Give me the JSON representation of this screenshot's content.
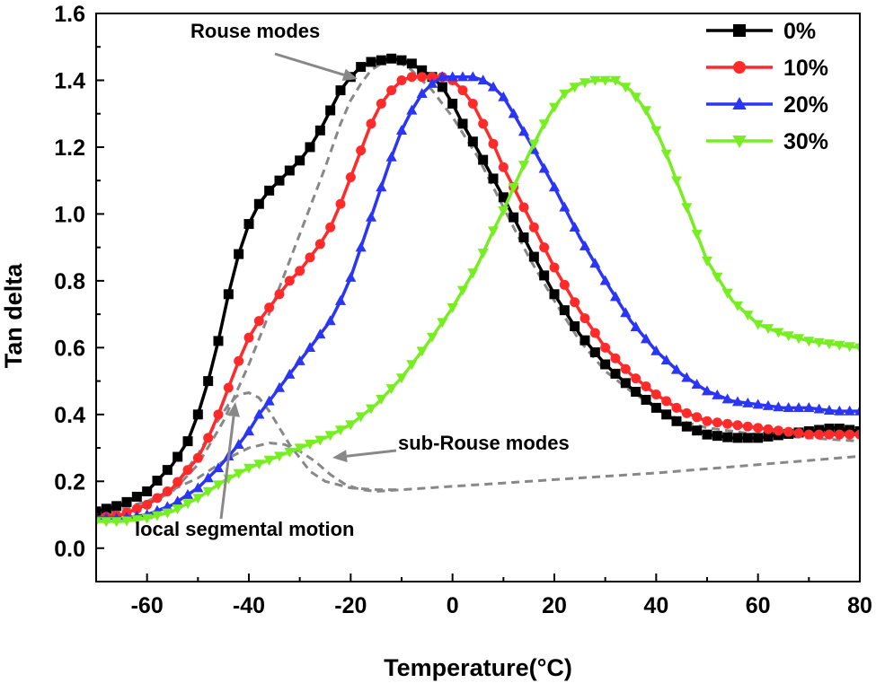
{
  "chart_data": {
    "type": "line",
    "title": "",
    "xlabel": "Temperature(°C)",
    "ylabel": "Tan delta",
    "xlim": [
      -70,
      80
    ],
    "ylim": [
      -0.1,
      1.6
    ],
    "xticks": [
      -60,
      -40,
      -20,
      0,
      20,
      40,
      60,
      80
    ],
    "yticks": [
      0.0,
      0.2,
      0.4,
      0.6,
      0.8,
      1.0,
      1.2,
      1.4,
      1.6
    ],
    "xtick_labels": [
      "-60",
      "-40",
      "-20",
      "0",
      "20",
      "40",
      "60",
      "80"
    ],
    "ytick_labels": [
      "0.0",
      "0.2",
      "0.4",
      "0.6",
      "0.8",
      "1.0",
      "1.2",
      "1.4",
      "1.6"
    ],
    "legend_position": "top-right",
    "series": [
      {
        "name": "0%",
        "color": "#000000",
        "marker": "square",
        "x": [
          -70,
          -65,
          -60,
          -55,
          -52,
          -50,
          -48,
          -46,
          -44,
          -42,
          -40,
          -38,
          -36,
          -34,
          -32,
          -30,
          -28,
          -26,
          -24,
          -22,
          -20,
          -18,
          -16,
          -14,
          -12,
          -10,
          -8,
          -6,
          -4,
          -2,
          0,
          2,
          5,
          10,
          15,
          20,
          25,
          30,
          35,
          40,
          45,
          50,
          55,
          60,
          65,
          70,
          75,
          80
        ],
        "y": [
          0.11,
          0.13,
          0.17,
          0.25,
          0.32,
          0.4,
          0.5,
          0.62,
          0.76,
          0.88,
          0.97,
          1.03,
          1.07,
          1.1,
          1.13,
          1.16,
          1.2,
          1.25,
          1.31,
          1.37,
          1.41,
          1.44,
          1.455,
          1.46,
          1.465,
          1.46,
          1.45,
          1.43,
          1.41,
          1.38,
          1.33,
          1.27,
          1.19,
          1.05,
          0.9,
          0.76,
          0.64,
          0.55,
          0.48,
          0.42,
          0.37,
          0.34,
          0.33,
          0.33,
          0.34,
          0.35,
          0.36,
          0.35
        ]
      },
      {
        "name": "10%",
        "color": "#ff2a2a",
        "marker": "circle",
        "x": [
          -70,
          -65,
          -60,
          -55,
          -50,
          -48,
          -46,
          -44,
          -42,
          -40,
          -38,
          -36,
          -34,
          -32,
          -30,
          -28,
          -26,
          -24,
          -22,
          -20,
          -18,
          -16,
          -14,
          -12,
          -10,
          -8,
          -6,
          -4,
          -2,
          0,
          2,
          4,
          6,
          8,
          10,
          15,
          20,
          25,
          30,
          35,
          40,
          45,
          50,
          55,
          60,
          65,
          70,
          75,
          80
        ],
        "y": [
          0.09,
          0.1,
          0.13,
          0.18,
          0.27,
          0.33,
          0.4,
          0.48,
          0.56,
          0.63,
          0.68,
          0.72,
          0.76,
          0.8,
          0.83,
          0.87,
          0.91,
          0.96,
          1.03,
          1.11,
          1.19,
          1.27,
          1.33,
          1.37,
          1.4,
          1.41,
          1.41,
          1.41,
          1.41,
          1.4,
          1.37,
          1.33,
          1.27,
          1.21,
          1.14,
          0.99,
          0.84,
          0.71,
          0.6,
          0.52,
          0.46,
          0.41,
          0.38,
          0.37,
          0.36,
          0.35,
          0.34,
          0.34,
          0.34
        ]
      },
      {
        "name": "20%",
        "color": "#2b35f5",
        "marker": "triangle-up",
        "x": [
          -70,
          -65,
          -60,
          -55,
          -50,
          -46,
          -42,
          -40,
          -38,
          -36,
          -34,
          -32,
          -30,
          -28,
          -26,
          -24,
          -22,
          -20,
          -18,
          -16,
          -14,
          -12,
          -10,
          -8,
          -6,
          -4,
          -2,
          0,
          2,
          4,
          6,
          8,
          10,
          12,
          15,
          20,
          25,
          30,
          35,
          40,
          45,
          50,
          55,
          60,
          65,
          70,
          75,
          80
        ],
        "y": [
          0.09,
          0.09,
          0.1,
          0.13,
          0.18,
          0.24,
          0.31,
          0.35,
          0.4,
          0.44,
          0.48,
          0.52,
          0.56,
          0.6,
          0.64,
          0.68,
          0.74,
          0.81,
          0.9,
          0.99,
          1.08,
          1.17,
          1.25,
          1.31,
          1.36,
          1.39,
          1.41,
          1.41,
          1.41,
          1.41,
          1.4,
          1.38,
          1.35,
          1.3,
          1.22,
          1.08,
          0.93,
          0.8,
          0.68,
          0.59,
          0.52,
          0.47,
          0.44,
          0.43,
          0.42,
          0.42,
          0.41,
          0.41
        ]
      },
      {
        "name": "30%",
        "color": "#77ee22",
        "marker": "triangle-down",
        "x": [
          -70,
          -65,
          -60,
          -55,
          -50,
          -45,
          -40,
          -35,
          -30,
          -25,
          -20,
          -15,
          -10,
          -5,
          0,
          5,
          8,
          10,
          12,
          15,
          18,
          20,
          22,
          25,
          28,
          30,
          32,
          35,
          38,
          40,
          42,
          45,
          48,
          50,
          55,
          60,
          65,
          70,
          75,
          80
        ],
        "y": [
          0.08,
          0.08,
          0.09,
          0.11,
          0.15,
          0.2,
          0.24,
          0.27,
          0.3,
          0.33,
          0.37,
          0.43,
          0.51,
          0.61,
          0.72,
          0.85,
          0.95,
          1.01,
          1.08,
          1.18,
          1.27,
          1.32,
          1.36,
          1.39,
          1.4,
          1.4,
          1.4,
          1.37,
          1.31,
          1.25,
          1.18,
          1.06,
          0.94,
          0.86,
          0.74,
          0.67,
          0.64,
          0.62,
          0.61,
          0.6
        ]
      }
    ],
    "fit_curves": [
      {
        "x": [
          -70,
          -65,
          -60,
          -55,
          -50,
          -45,
          -40,
          -35,
          -30,
          -25,
          -22,
          -20,
          -18,
          -16,
          -14,
          -12,
          -10,
          -8,
          -6,
          -4,
          -2,
          0,
          5,
          10,
          15,
          20,
          25,
          30,
          35,
          40,
          45,
          50,
          60,
          70,
          80
        ],
        "y": [
          0.1,
          0.11,
          0.13,
          0.17,
          0.25,
          0.38,
          0.55,
          0.74,
          0.94,
          1.14,
          1.27,
          1.34,
          1.39,
          1.43,
          1.45,
          1.46,
          1.45,
          1.43,
          1.4,
          1.37,
          1.33,
          1.29,
          1.17,
          1.02,
          0.87,
          0.74,
          0.62,
          0.53,
          0.47,
          0.42,
          0.38,
          0.36,
          0.34,
          0.33,
          0.32
        ]
      },
      {
        "x": [
          -70,
          -60,
          -55,
          -50,
          -47,
          -44,
          -42,
          -40,
          -38,
          -36,
          -34,
          -32,
          -30,
          -28,
          -25,
          -20,
          -15,
          -10
        ],
        "y": [
          0.1,
          0.13,
          0.18,
          0.28,
          0.36,
          0.43,
          0.46,
          0.465,
          0.45,
          0.41,
          0.36,
          0.31,
          0.27,
          0.23,
          0.2,
          0.18,
          0.175,
          0.175
        ]
      },
      {
        "x": [
          -70,
          -60,
          -50,
          -44,
          -40,
          -36,
          -33,
          -30,
          -27,
          -24,
          -21,
          -18,
          -15,
          -10,
          0,
          10,
          20,
          40,
          60,
          80
        ],
        "y": [
          0.1,
          0.14,
          0.21,
          0.27,
          0.3,
          0.315,
          0.31,
          0.29,
          0.26,
          0.22,
          0.19,
          0.175,
          0.17,
          0.175,
          0.185,
          0.195,
          0.205,
          0.225,
          0.25,
          0.275
        ]
      }
    ],
    "annotations": [
      {
        "text": "Rouse modes"
      },
      {
        "text": "sub-Rouse modes"
      },
      {
        "text": "local segmental motion"
      }
    ]
  }
}
